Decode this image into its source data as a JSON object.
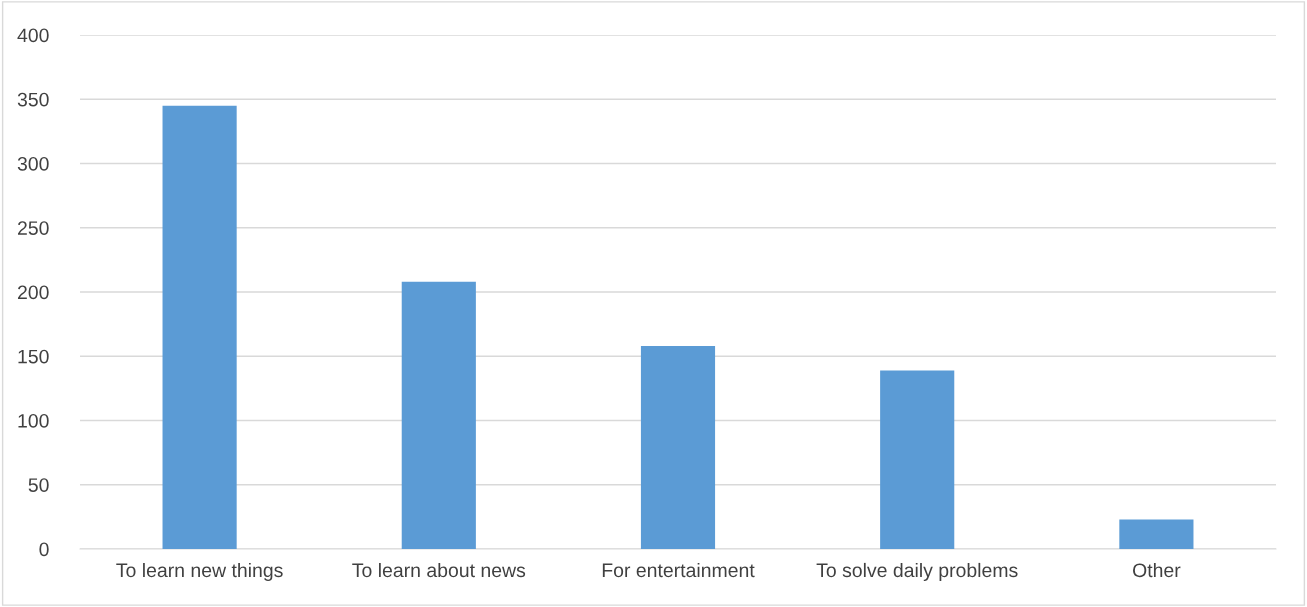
{
  "chart_data": {
    "type": "bar",
    "categories": [
      "To learn new things",
      "To learn about news",
      "For entertainment",
      "To solve daily problems",
      "Other"
    ],
    "values": [
      345,
      208,
      158,
      139,
      23
    ],
    "color": "#5b9bd5",
    "ylim": [
      0,
      400
    ],
    "yticks": [
      0,
      50,
      100,
      150,
      200,
      250,
      300,
      350,
      400
    ],
    "grid": "y"
  }
}
